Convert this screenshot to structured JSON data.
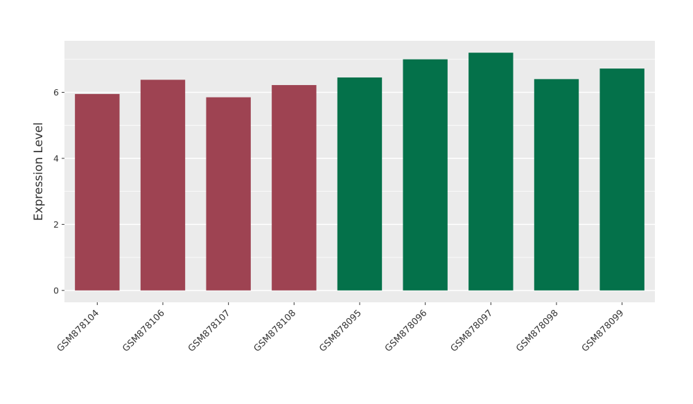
{
  "chart_data": {
    "type": "bar",
    "title": "",
    "xlabel": "",
    "ylabel": "Expression Level",
    "categories": [
      "GSM878104",
      "GSM878106",
      "GSM878107",
      "GSM878108",
      "GSM878095",
      "GSM878096",
      "GSM878097",
      "GSM878098",
      "GSM878099"
    ],
    "values": [
      5.95,
      6.38,
      5.85,
      6.22,
      6.45,
      7.0,
      7.2,
      6.4,
      6.72
    ],
    "bar_colors": [
      "#9e4352",
      "#9e4352",
      "#9e4352",
      "#9e4352",
      "#04714a",
      "#04714a",
      "#04714a",
      "#04714a",
      "#04714a"
    ],
    "group_colors": {
      "group1": "#9e4352",
      "group2": "#04714a"
    },
    "yticks": [
      0,
      2,
      4,
      6
    ],
    "ytick_labels": [
      "0",
      "2",
      "4",
      "6"
    ],
    "ylim": [
      0,
      7.5
    ],
    "grid": true,
    "legend": "none",
    "panel_bg": "#ebebeb",
    "grid_color": "#ffffff",
    "tick_color": "#333333",
    "axis_label_color": "#000000"
  }
}
